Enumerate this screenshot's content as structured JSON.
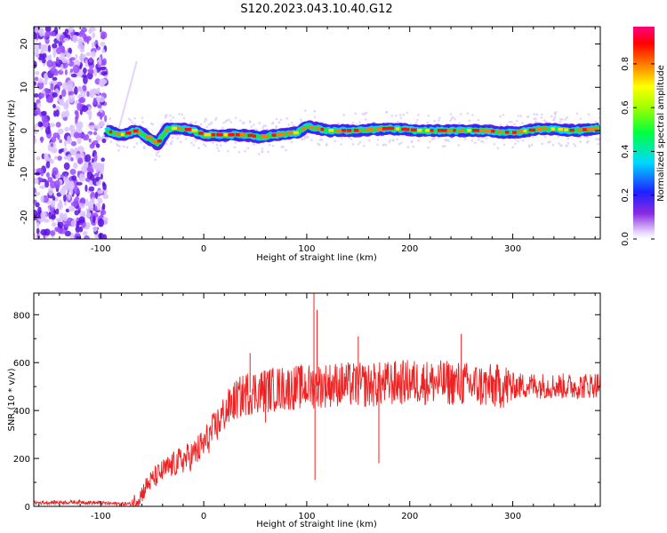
{
  "figure": {
    "title": "S120.2023.043.10.40.G12"
  },
  "chart_data": [
    {
      "type": "heatmap",
      "xlabel": "Height of straight line (km)",
      "ylabel": "Frequency (Hz)",
      "xlim": [
        -165,
        385
      ],
      "ylim": [
        -25,
        24
      ],
      "xticks": [
        -100,
        0,
        100,
        200,
        300
      ],
      "yticks": [
        -20,
        -10,
        0,
        10,
        20
      ],
      "colorbar": {
        "label": "Normalized spectral amplitude",
        "range": [
          0,
          0.97
        ],
        "ticks": [
          "0.0",
          "0.2",
          "0.4",
          "0.6",
          "0.8"
        ],
        "colormap": "rainbow (violet → blue → cyan → green → yellow → red → magenta)"
      },
      "trace": {
        "description_points_x": [
          -95,
          -80,
          -65,
          -55,
          -45,
          -35,
          -25,
          -10,
          0,
          20,
          40,
          55,
          70,
          90,
          100,
          120,
          150,
          180,
          210,
          240,
          270,
          300,
          330,
          360,
          385
        ],
        "frequency_hz": [
          0,
          -1,
          0,
          -1.5,
          -3,
          0.5,
          0.5,
          0,
          -1,
          -1,
          -1,
          -1.5,
          -1,
          -0.5,
          1,
          0,
          0,
          0.5,
          0,
          0,
          0,
          -0.5,
          0.5,
          0,
          0.5
        ]
      }
    },
    {
      "type": "line",
      "xlabel": "Height of straight line (km)",
      "ylabel": "SNR (10 * v/v)",
      "xlim": [
        -165,
        385
      ],
      "ylim": [
        0,
        890
      ],
      "xticks": [
        -100,
        0,
        100,
        200,
        300
      ],
      "yticks": [
        0,
        200,
        400,
        600,
        800
      ],
      "series": [
        {
          "color": "#ee2222",
          "x": [
            -165,
            -120,
            -90,
            -70,
            -62,
            -55,
            -45,
            -35,
            -25,
            -10,
            0,
            10,
            20,
            30,
            40,
            50,
            70,
            100,
            130,
            160,
            200,
            240,
            280,
            320,
            360,
            385
          ],
          "y": [
            15,
            18,
            12,
            10,
            40,
            90,
            130,
            160,
            185,
            215,
            260,
            320,
            390,
            440,
            470,
            480,
            490,
            500,
            510,
            505,
            520,
            515,
            500,
            505,
            500,
            510
          ]
        }
      ],
      "spikes": [
        [
          45,
          640
        ],
        [
          107,
          890
        ],
        [
          110,
          820
        ],
        [
          108,
          110
        ],
        [
          170,
          180
        ],
        [
          150,
          710
        ],
        [
          250,
          720
        ],
        [
          60,
          350
        ]
      ]
    }
  ]
}
